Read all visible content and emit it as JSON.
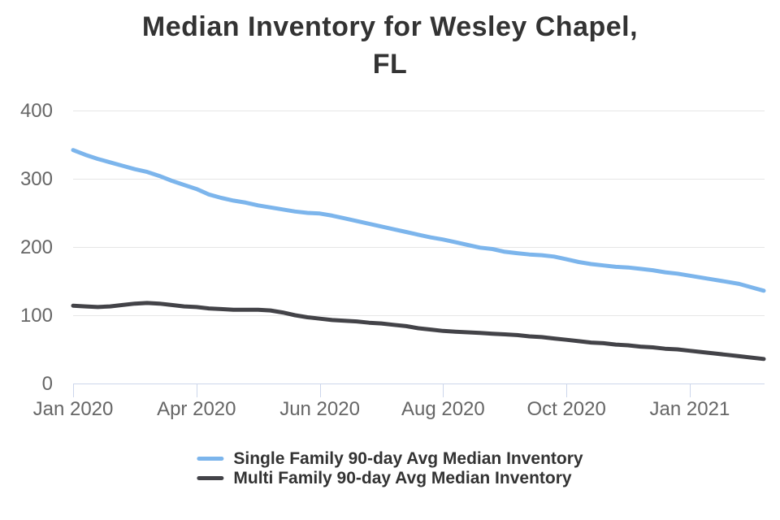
{
  "title": "Median Inventory for Wesley Chapel, FL",
  "title_lines": [
    "Median Inventory for Wesley Chapel,",
    "FL"
  ],
  "chart_data": {
    "type": "line",
    "title": "Median Inventory for Wesley Chapel, FL",
    "xlabel": "",
    "ylabel": "",
    "ylim": [
      0,
      400
    ],
    "y_ticks": [
      0,
      100,
      200,
      300,
      400
    ],
    "y_tick_labels": [
      "0",
      "100",
      "200",
      "300",
      "400"
    ],
    "grid": "horizontal",
    "legend_position": "bottom",
    "n_points": 57,
    "x_tick_indices": [
      0,
      10,
      20,
      30,
      40,
      50
    ],
    "x_tick_labels": [
      "Jan 2020",
      "Apr 2020",
      "Jun 2020",
      "Aug 2020",
      "Oct 2020",
      "Jan 2021"
    ],
    "series": [
      {
        "name": "Single Family 90-day Avg Median Inventory",
        "color": "#7cb5ec",
        "values": [
          342,
          335,
          329,
          324,
          319,
          314,
          310,
          304,
          297,
          291,
          285,
          277,
          272,
          268,
          265,
          261,
          258,
          255,
          252,
          250,
          249,
          246,
          242,
          238,
          234,
          230,
          226,
          222,
          218,
          214,
          211,
          207,
          203,
          199,
          197,
          193,
          191,
          189,
          188,
          186,
          182,
          178,
          175,
          173,
          171,
          170,
          168,
          166,
          163,
          161,
          158,
          155,
          152,
          149,
          146,
          141,
          136
        ]
      },
      {
        "name": "Multi Family 90-day Avg Median Inventory",
        "color": "#434348",
        "values": [
          114,
          113,
          112,
          113,
          115,
          117,
          118,
          117,
          115,
          113,
          112,
          110,
          109,
          108,
          108,
          108,
          107,
          104,
          100,
          97,
          95,
          93,
          92,
          91,
          89,
          88,
          86,
          84,
          81,
          79,
          77,
          76,
          75,
          74,
          73,
          72,
          71,
          69,
          68,
          66,
          64,
          62,
          60,
          59,
          57,
          56,
          54,
          53,
          51,
          50,
          48,
          46,
          44,
          42,
          40,
          38,
          36
        ]
      }
    ],
    "style_colors": {
      "gridline": "#e6e6e6",
      "axis_line": "#ccd6eb",
      "tick": "#ccd6eb",
      "axis_label": "#666666",
      "title": "#333333",
      "legend_text": "#333333",
      "background": "#ffffff"
    }
  }
}
